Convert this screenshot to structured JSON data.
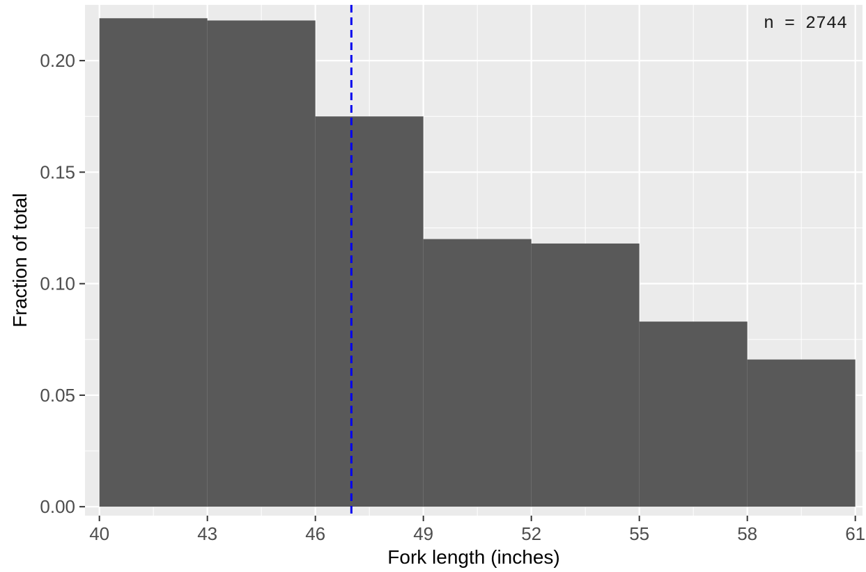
{
  "chart_data": {
    "type": "histogram",
    "title": "",
    "xlabel": "Fork length (inches)",
    "ylabel": "Fraction of total",
    "xlim": [
      39.6,
      61.2
    ],
    "ylim": [
      -0.004,
      0.225
    ],
    "x_ticks": [
      40,
      43,
      46,
      49,
      52,
      55,
      58,
      61
    ],
    "x_tick_labels": [
      "40",
      "43",
      "46",
      "49",
      "52",
      "55",
      "58",
      "61"
    ],
    "y_ticks": [
      0.0,
      0.05,
      0.1,
      0.15,
      0.2
    ],
    "y_tick_labels": [
      "0.00",
      "0.05",
      "0.10",
      "0.15",
      "0.20"
    ],
    "bins": [
      {
        "x0": 40,
        "x1": 43,
        "value": 0.219
      },
      {
        "x0": 43,
        "x1": 46,
        "value": 0.218
      },
      {
        "x0": 46,
        "x1": 49,
        "value": 0.175
      },
      {
        "x0": 49,
        "x1": 52,
        "value": 0.12
      },
      {
        "x0": 52,
        "x1": 55,
        "value": 0.118
      },
      {
        "x0": 55,
        "x1": 58,
        "value": 0.083
      },
      {
        "x0": 58,
        "x1": 61,
        "value": 0.066
      }
    ],
    "reference_line": {
      "x": 47.0,
      "color": "#0000ee",
      "style": "dashed"
    },
    "annotation": "n = 2744",
    "grid": true,
    "colors": {
      "panel_background": "#ebebeb",
      "grid": "#ffffff",
      "bar_fill": "#595959",
      "tick_text": "#4d4d4d",
      "axis_title": "#000000"
    }
  }
}
